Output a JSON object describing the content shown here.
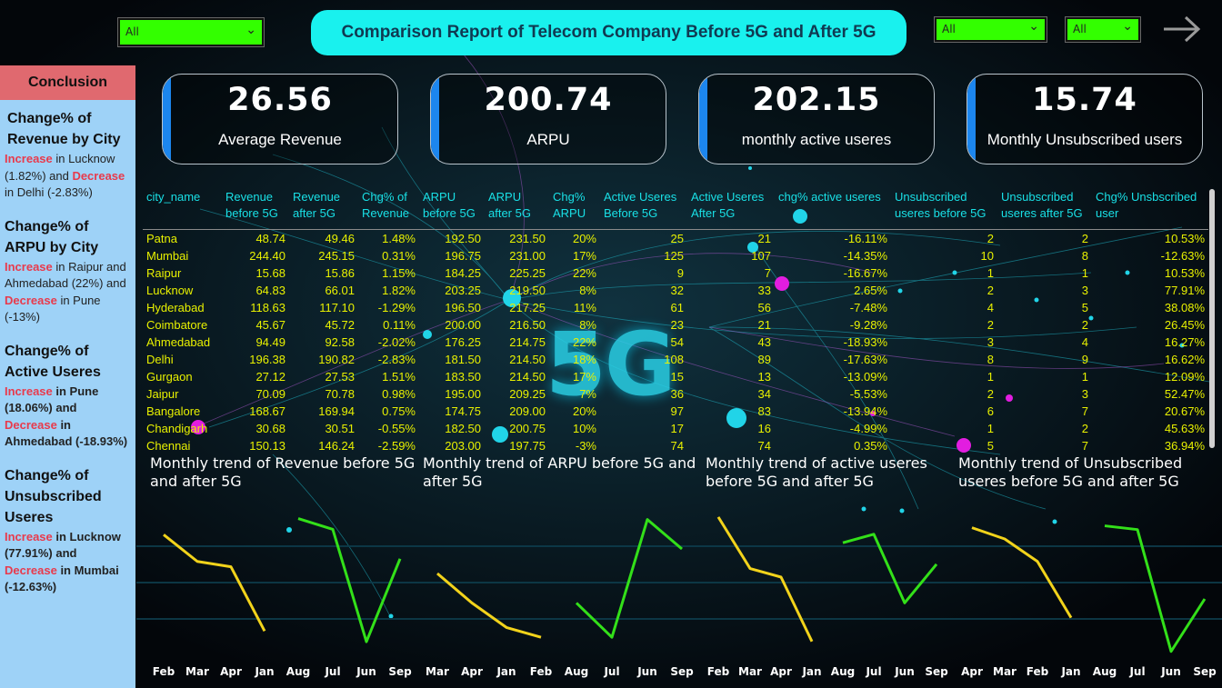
{
  "header": {
    "title": "Comparison Report of Telecom Company Before 5G and After 5G",
    "filters": [
      {
        "selected": "All"
      },
      {
        "selected": "All"
      },
      {
        "selected": "All"
      }
    ],
    "next_icon": "arrow-right-icon"
  },
  "sidebar": {
    "title": "Conclusion",
    "sections": [
      {
        "heading": "Change% of Revenue by City",
        "w_increase": "Increase",
        "t1": " in Lucknow (1.82%) and ",
        "w_decrease": "Decrease",
        "t2": " in Delhi (-2.83%)"
      },
      {
        "heading": "Change% of ARPU by City",
        "w_increase": "Increase",
        "t1": " in Raipur and Ahmedabad (22%) and ",
        "w_decrease": "Decrease",
        "t2": " in Pune (-13%)"
      },
      {
        "heading": "Change% of Active Useres",
        "w_increase": "Increase",
        "t1": "  in Pune (18.06%) and ",
        "w_decrease": "Decrease",
        "t2": " in Ahmedabad (-18.93%)"
      },
      {
        "heading": "Change% of Unsubscribed Useres",
        "w_increase": "Increase",
        "t1": " in Lucknow (77.91%)  and ",
        "w_decrease": "Decrease",
        "t2": " in Mumbai (-12.63%)"
      }
    ]
  },
  "kpis": [
    {
      "value": "26.56",
      "label": "Average Revenue"
    },
    {
      "value": "200.74",
      "label": "ARPU"
    },
    {
      "value": "202.15",
      "label": "monthly active useres"
    },
    {
      "value": "15.74",
      "label": "Monthly Unsubscribed users"
    }
  ],
  "table": {
    "columns": [
      "city_name",
      "Revenue before 5G",
      "Revenue after 5G",
      "Chg% of Revenue",
      "ARPU before 5G",
      "ARPU after 5G",
      "Chg% ARPU",
      "Active Useres Before 5G",
      "Active Useres After 5G",
      "chg% active useres",
      "Unsubscribed useres before 5G",
      "Unsubscribed useres after 5G",
      "Chg% Unsbscribed user"
    ],
    "rows": [
      [
        "Patna",
        "48.74",
        "49.46",
        "1.48%",
        "192.50",
        "231.50",
        "20%",
        "25",
        "21",
        "-16.11%",
        "2",
        "2",
        "10.53%"
      ],
      [
        "Mumbai",
        "244.40",
        "245.15",
        "0.31%",
        "196.75",
        "231.00",
        "17%",
        "125",
        "107",
        "-14.35%",
        "10",
        "8",
        "-12.63%"
      ],
      [
        "Raipur",
        "15.68",
        "15.86",
        "1.15%",
        "184.25",
        "225.25",
        "22%",
        "9",
        "7",
        "-16.67%",
        "1",
        "1",
        "10.53%"
      ],
      [
        "Lucknow",
        "64.83",
        "66.01",
        "1.82%",
        "203.25",
        "219.50",
        "8%",
        "32",
        "33",
        "2.65%",
        "2",
        "3",
        "77.91%"
      ],
      [
        "Hyderabad",
        "118.63",
        "117.10",
        "-1.29%",
        "196.50",
        "217.25",
        "11%",
        "61",
        "56",
        "-7.48%",
        "4",
        "5",
        "38.08%"
      ],
      [
        "Coimbatore",
        "45.67",
        "45.72",
        "0.11%",
        "200.00",
        "216.50",
        "8%",
        "23",
        "21",
        "-9.28%",
        "2",
        "2",
        "26.45%"
      ],
      [
        "Ahmedabad",
        "94.49",
        "92.58",
        "-2.02%",
        "176.25",
        "214.75",
        "22%",
        "54",
        "43",
        "-18.93%",
        "3",
        "4",
        "16.27%"
      ],
      [
        "Delhi",
        "196.38",
        "190.82",
        "-2.83%",
        "181.50",
        "214.50",
        "18%",
        "108",
        "89",
        "-17.63%",
        "8",
        "9",
        "16.62%"
      ],
      [
        "Gurgaon",
        "27.12",
        "27.53",
        "1.51%",
        "183.50",
        "214.50",
        "17%",
        "15",
        "13",
        "-13.09%",
        "1",
        "1",
        "12.09%"
      ],
      [
        "Jaipur",
        "70.09",
        "70.78",
        "0.98%",
        "195.00",
        "209.25",
        "7%",
        "36",
        "34",
        "-5.53%",
        "2",
        "3",
        "52.47%"
      ],
      [
        "Bangalore",
        "168.67",
        "169.94",
        "0.75%",
        "174.75",
        "209.00",
        "20%",
        "97",
        "83",
        "-13.94%",
        "6",
        "7",
        "20.67%"
      ],
      [
        "Chandigarh",
        "30.68",
        "30.51",
        "-0.55%",
        "182.50",
        "200.75",
        "10%",
        "17",
        "16",
        "-4.99%",
        "1",
        "2",
        "45.63%"
      ],
      [
        "Chennai",
        "150.13",
        "146.24",
        "-2.59%",
        "203.00",
        "197.75",
        "-3%",
        "74",
        "74",
        "0.35%",
        "5",
        "7",
        "36.94%"
      ]
    ]
  },
  "banner_text": "5G",
  "colors": {
    "before": "#f2d31b",
    "after": "#33e019"
  },
  "chart_data": [
    {
      "type": "line",
      "title": "Monthly trend of Revenue before 5G and after 5G",
      "categories": [
        "Feb",
        "Mar",
        "Apr",
        "Jan",
        "Aug",
        "Jul",
        "Jun",
        "Sep"
      ],
      "series": [
        {
          "name": "Before 5G",
          "values": [
            27.2,
            26.2,
            26.0,
            23.6,
            null,
            null,
            null,
            null
          ]
        },
        {
          "name": "After 5G",
          "values": [
            null,
            null,
            null,
            null,
            27.8,
            27.4,
            23.2,
            26.3
          ]
        }
      ],
      "ylim": [
        23,
        28.5
      ]
    },
    {
      "type": "line",
      "title": "Monthly trend of ARPU before 5G and after 5G",
      "categories": [
        "Mar",
        "Apr",
        "Jan",
        "Feb",
        "Aug",
        "Jul",
        "Jun",
        "Sep"
      ],
      "series": [
        {
          "name": "Before 5G",
          "values": [
            195,
            189,
            184,
            182,
            null,
            null,
            null,
            null
          ]
        },
        {
          "name": "After 5G",
          "values": [
            null,
            null,
            null,
            null,
            189,
            182,
            206,
            200
          ]
        }
      ],
      "ylim": [
        180,
        210
      ]
    },
    {
      "type": "line",
      "title": "Monthly trend of active useres before 5G and after 5G",
      "categories": [
        "Feb",
        "Mar",
        "Apr",
        "Jan",
        "Aug",
        "Jul",
        "Jun",
        "Sep"
      ],
      "series": [
        {
          "name": "Before 5G",
          "values": [
            220,
            208,
            206,
            191,
            null,
            null,
            null,
            null
          ]
        },
        {
          "name": "After 5G",
          "values": [
            null,
            null,
            null,
            null,
            214,
            216,
            200,
            209
          ]
        }
      ],
      "ylim": [
        188,
        224
      ]
    },
    {
      "type": "line",
      "title": "Monthly trend of Unsubscribed useres before 5G and after 5G",
      "categories": [
        "Apr",
        "Mar",
        "Feb",
        "Jan",
        "Aug",
        "Jul",
        "Jun",
        "Sep"
      ],
      "series": [
        {
          "name": "Before 5G",
          "values": [
            18.0,
            17.4,
            16.2,
            13.2,
            null,
            null,
            null,
            null
          ]
        },
        {
          "name": "After 5G",
          "values": [
            null,
            null,
            null,
            null,
            18.1,
            17.9,
            11.4,
            14.2
          ]
        }
      ],
      "ylim": [
        11,
        19
      ]
    }
  ]
}
